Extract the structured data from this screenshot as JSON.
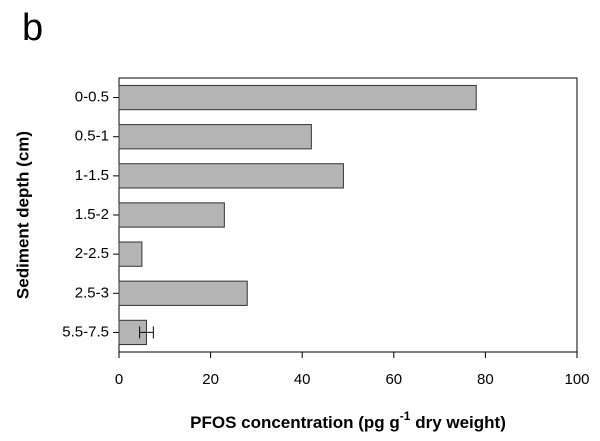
{
  "chart_data": {
    "type": "barh",
    "panel_label": "b",
    "ylabel": "Sediment depth (cm)",
    "xlabel": {
      "text": "PFOS concentration (pg g",
      "superscript": "-1",
      "suffix": " dry weight)"
    },
    "categories": [
      "0-0.5",
      "0.5-1",
      "1-1.5",
      "1.5-2",
      "2-2.5",
      "2.5-3",
      "5.5-7.5"
    ],
    "values": [
      78,
      42,
      49,
      23,
      5,
      28,
      6
    ],
    "errors": [
      null,
      null,
      null,
      null,
      null,
      null,
      1.5
    ],
    "color": "#b4b4b4",
    "xlim": [
      0,
      100
    ],
    "xticks": [
      0,
      20,
      40,
      60,
      80,
      100
    ]
  }
}
